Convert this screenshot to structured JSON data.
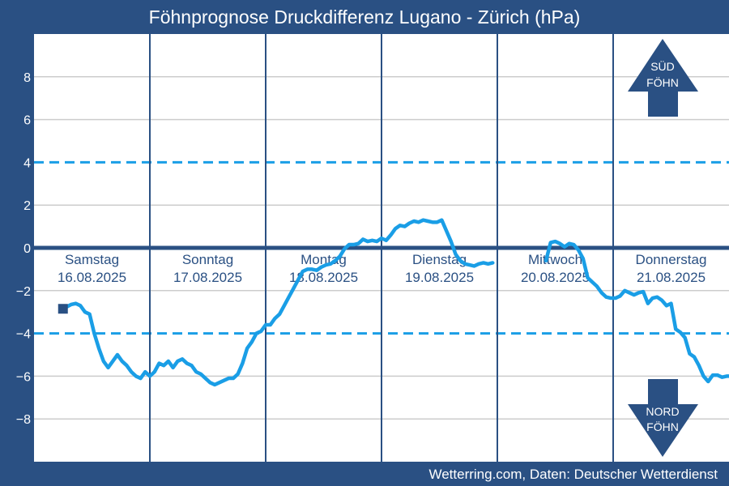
{
  "header": {
    "title": "Föhnprognose Druckdifferenz Lugano - Zürich (hPa)"
  },
  "footer": {
    "credit": "Wetterring.com, Daten: Deutscher Wetterdienst"
  },
  "colors": {
    "background": "#2a5083",
    "series": "#1a9ee6",
    "threshold": "#1a9ee6",
    "zero": "#2a5083",
    "grid": "#cccccc",
    "plot": "#ffffff"
  },
  "arrows": {
    "south": {
      "line1": "SÜD",
      "line2": "FÖHN",
      "icon": "arrow-up-icon"
    },
    "north": {
      "line1": "NORD",
      "line2": "FÖHN",
      "icon": "arrow-down-icon"
    }
  },
  "chart_data": {
    "type": "line",
    "title": "Föhnprognose Druckdifferenz Lugano - Zürich (hPa)",
    "ylim": [
      -10,
      10
    ],
    "yticks": [
      8,
      6,
      4,
      2,
      0,
      -2,
      -4,
      -6,
      -8
    ],
    "ytick_labels": [
      "8",
      "6",
      "4",
      "2",
      "0",
      "−2",
      "−4",
      "−6",
      "−8"
    ],
    "xlim": [
      0,
      6
    ],
    "grid": true,
    "thresholds": [
      4,
      -4
    ],
    "days": [
      {
        "name": "Samstag",
        "date": "16.08.2025"
      },
      {
        "name": "Sonntag",
        "date": "17.08.2025"
      },
      {
        "name": "Montag",
        "date": "18.08.2025"
      },
      {
        "name": "Dienstag",
        "date": "19.08.2025"
      },
      {
        "name": "Mittwoch",
        "date": "20.08.2025"
      },
      {
        "name": "Donnerstag",
        "date": "21.08.2025"
      }
    ],
    "start_marker": {
      "x": 0.25,
      "y": -2.85
    },
    "series": [
      {
        "x": [
          0.25,
          0.32,
          0.36,
          0.4,
          0.44,
          0.48,
          0.52,
          0.56,
          0.6,
          0.64,
          0.68,
          0.72,
          0.76,
          0.8,
          0.84,
          0.88,
          0.92,
          0.96,
          1.0,
          1.04,
          1.08,
          1.12,
          1.16,
          1.2,
          1.24,
          1.28,
          1.32,
          1.36,
          1.4,
          1.44,
          1.48,
          1.52,
          1.56,
          1.6,
          1.64,
          1.68,
          1.72,
          1.76,
          1.8,
          1.84,
          1.88,
          1.92,
          1.96,
          2.0,
          2.04,
          2.08,
          2.12,
          2.16,
          2.2,
          2.24,
          2.28,
          2.32,
          2.36,
          2.4,
          2.44,
          2.48,
          2.52,
          2.56,
          2.6,
          2.64,
          2.68,
          2.72,
          2.76,
          2.8,
          2.84,
          2.88,
          2.92,
          2.96,
          3.0,
          3.04,
          3.08,
          3.12,
          3.16,
          3.2,
          3.24,
          3.28,
          3.32,
          3.36,
          3.4,
          3.44,
          3.48,
          3.52,
          3.56,
          3.6,
          3.64,
          3.68,
          3.72,
          3.76,
          3.8,
          3.84,
          3.88,
          3.92,
          3.96
        ],
        "y": [
          -2.85,
          -2.65,
          -2.6,
          -2.7,
          -3.0,
          -3.1,
          -4.0,
          -4.7,
          -5.3,
          -5.6,
          -5.3,
          -5.0,
          -5.3,
          -5.5,
          -5.8,
          -6.0,
          -6.1,
          -5.8,
          -6.0,
          -5.8,
          -5.4,
          -5.5,
          -5.3,
          -5.6,
          -5.3,
          -5.2,
          -5.4,
          -5.5,
          -5.8,
          -5.9,
          -6.1,
          -6.3,
          -6.4,
          -6.3,
          -6.2,
          -6.1,
          -6.1,
          -5.9,
          -5.4,
          -4.7,
          -4.4,
          -4.0,
          -3.9,
          -3.6,
          -3.6,
          -3.3,
          -3.1,
          -2.7,
          -2.3,
          -1.9,
          -1.5,
          -1.1,
          -1.0,
          -1.0,
          -1.05,
          -0.9,
          -0.8,
          -0.75,
          -0.6,
          -0.4,
          -0.05,
          0.15,
          0.15,
          0.2,
          0.4,
          0.3,
          0.35,
          0.3,
          0.45,
          0.35,
          0.6,
          0.9,
          1.05,
          1.0,
          1.15,
          1.25,
          1.2,
          1.3,
          1.25,
          1.2,
          1.2,
          1.3,
          0.8,
          0.3,
          -0.3,
          -0.6,
          -0.75,
          -0.8,
          -0.85,
          -0.75,
          -0.7,
          -0.75,
          -0.7
        ]
      },
      {
        "x": [
          4.42,
          4.46,
          4.5,
          4.54,
          4.58,
          4.62,
          4.66,
          4.7,
          4.74,
          4.78,
          4.82,
          4.86,
          4.9,
          4.94,
          4.98,
          5.02,
          5.06,
          5.1,
          5.14,
          5.18,
          5.22,
          5.26,
          5.3,
          5.34,
          5.38,
          5.42,
          5.46,
          5.5,
          5.54,
          5.58,
          5.62,
          5.66,
          5.7,
          5.74,
          5.78,
          5.82,
          5.86,
          5.9,
          5.94,
          5.98,
          6.0
        ],
        "y": [
          -0.6,
          0.25,
          0.3,
          0.2,
          0.05,
          0.2,
          0.15,
          -0.1,
          -0.5,
          -1.4,
          -1.6,
          -1.8,
          -2.1,
          -2.3,
          -2.35,
          -2.35,
          -2.25,
          -2.0,
          -2.1,
          -2.2,
          -2.1,
          -2.05,
          -2.6,
          -2.35,
          -2.3,
          -2.45,
          -2.7,
          -2.6,
          -3.8,
          -3.95,
          -4.2,
          -4.95,
          -5.1,
          -5.5,
          -6.0,
          -6.25,
          -5.95,
          -5.95,
          -6.05,
          -6.0,
          -6.0
        ]
      }
    ]
  }
}
